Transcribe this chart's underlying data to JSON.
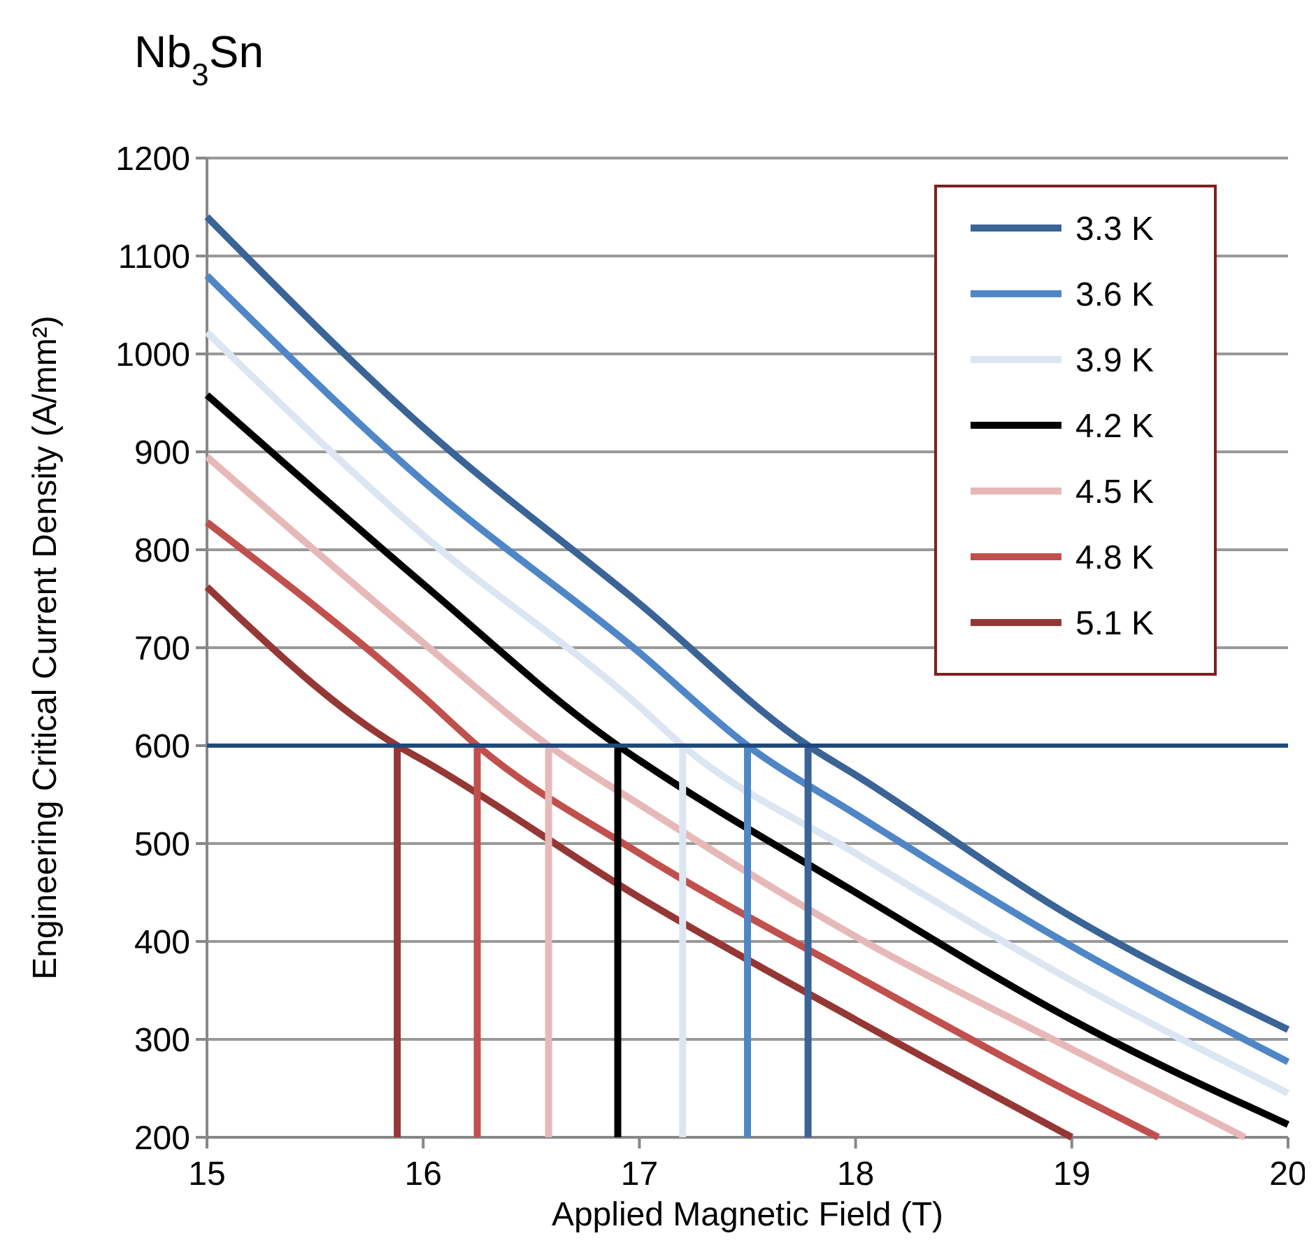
{
  "chart_data": {
    "type": "line",
    "title": "Nb$_{3}$Sn",
    "xlabel": "Applied Magnetic Field (T)",
    "ylabel": "Engineering Critical Current Density (A/mm²)",
    "xlim": [
      15,
      20
    ],
    "xticks": [
      15,
      16,
      17,
      18,
      19,
      20
    ],
    "ylim": [
      200,
      1200
    ],
    "yticks": [
      200,
      300,
      400,
      500,
      600,
      700,
      800,
      900,
      1000,
      1100,
      1200
    ],
    "grid": "y",
    "legend": "top right",
    "series": [
      {
        "name": "3.3 K",
        "color": "#3a6396",
        "x": [
          15,
          16,
          17,
          17.78,
          18,
          19,
          20
        ],
        "values": [
          1140,
          925,
          745,
          600,
          570,
          425,
          310
        ]
      },
      {
        "name": "3.6 K",
        "color": "#4f86c6",
        "x": [
          15,
          16,
          17,
          17.5,
          18,
          19,
          20
        ],
        "values": [
          1080,
          870,
          695,
          600,
          530,
          395,
          277
        ]
      },
      {
        "name": "3.9 K",
        "color": "#dce6f2",
        "x": [
          15,
          16,
          17,
          17.2,
          18,
          19,
          20
        ],
        "values": [
          1022,
          815,
          640,
          600,
          490,
          360,
          245
        ]
      },
      {
        "name": "4.2 K",
        "color": "#000000",
        "x": [
          15,
          16,
          16.9,
          17,
          18,
          19,
          20
        ],
        "values": [
          958,
          765,
          600,
          585,
          450,
          320,
          213
        ]
      },
      {
        "name": "4.5 K",
        "color": "#e6b9b8",
        "x": [
          15,
          16,
          16.58,
          17,
          18,
          19,
          19.8
        ],
        "values": [
          895,
          705,
          600,
          540,
          405,
          290,
          200
        ]
      },
      {
        "name": "4.8 K",
        "color": "#c0504d",
        "x": [
          15,
          16,
          16.25,
          17,
          18,
          19,
          19.4
        ],
        "values": [
          828,
          650,
          600,
          490,
          365,
          245,
          200
        ]
      },
      {
        "name": "5.1 K",
        "color": "#953735",
        "x": [
          15,
          15.88,
          16,
          17,
          18,
          19
        ],
        "values": [
          762,
          600,
          585,
          445,
          320,
          200
        ]
      },
      {
        "color": "#3a6396",
        "x": [
          17.78,
          17.78
        ],
        "values": [
          200,
          600
        ]
      },
      {
        "color": "#4f86c6",
        "x": [
          17.5,
          17.5
        ],
        "values": [
          200,
          600
        ]
      },
      {
        "color": "#dce6f2",
        "x": [
          17.2,
          17.2
        ],
        "values": [
          200,
          600
        ]
      },
      {
        "color": "#000000",
        "x": [
          16.9,
          16.9
        ],
        "values": [
          200,
          600
        ]
      },
      {
        "color": "#e6b9b8",
        "x": [
          16.58,
          16.58
        ],
        "values": [
          200,
          600
        ]
      },
      {
        "color": "#c0504d",
        "x": [
          16.25,
          16.25
        ],
        "values": [
          200,
          600
        ]
      },
      {
        "color": "#953735",
        "x": [
          15.88,
          15.88
        ],
        "values": [
          200,
          600
        ]
      }
    ],
    "ref_lines": [
      {
        "axis": "y",
        "value": 600,
        "color": "#1f497d"
      }
    ]
  }
}
